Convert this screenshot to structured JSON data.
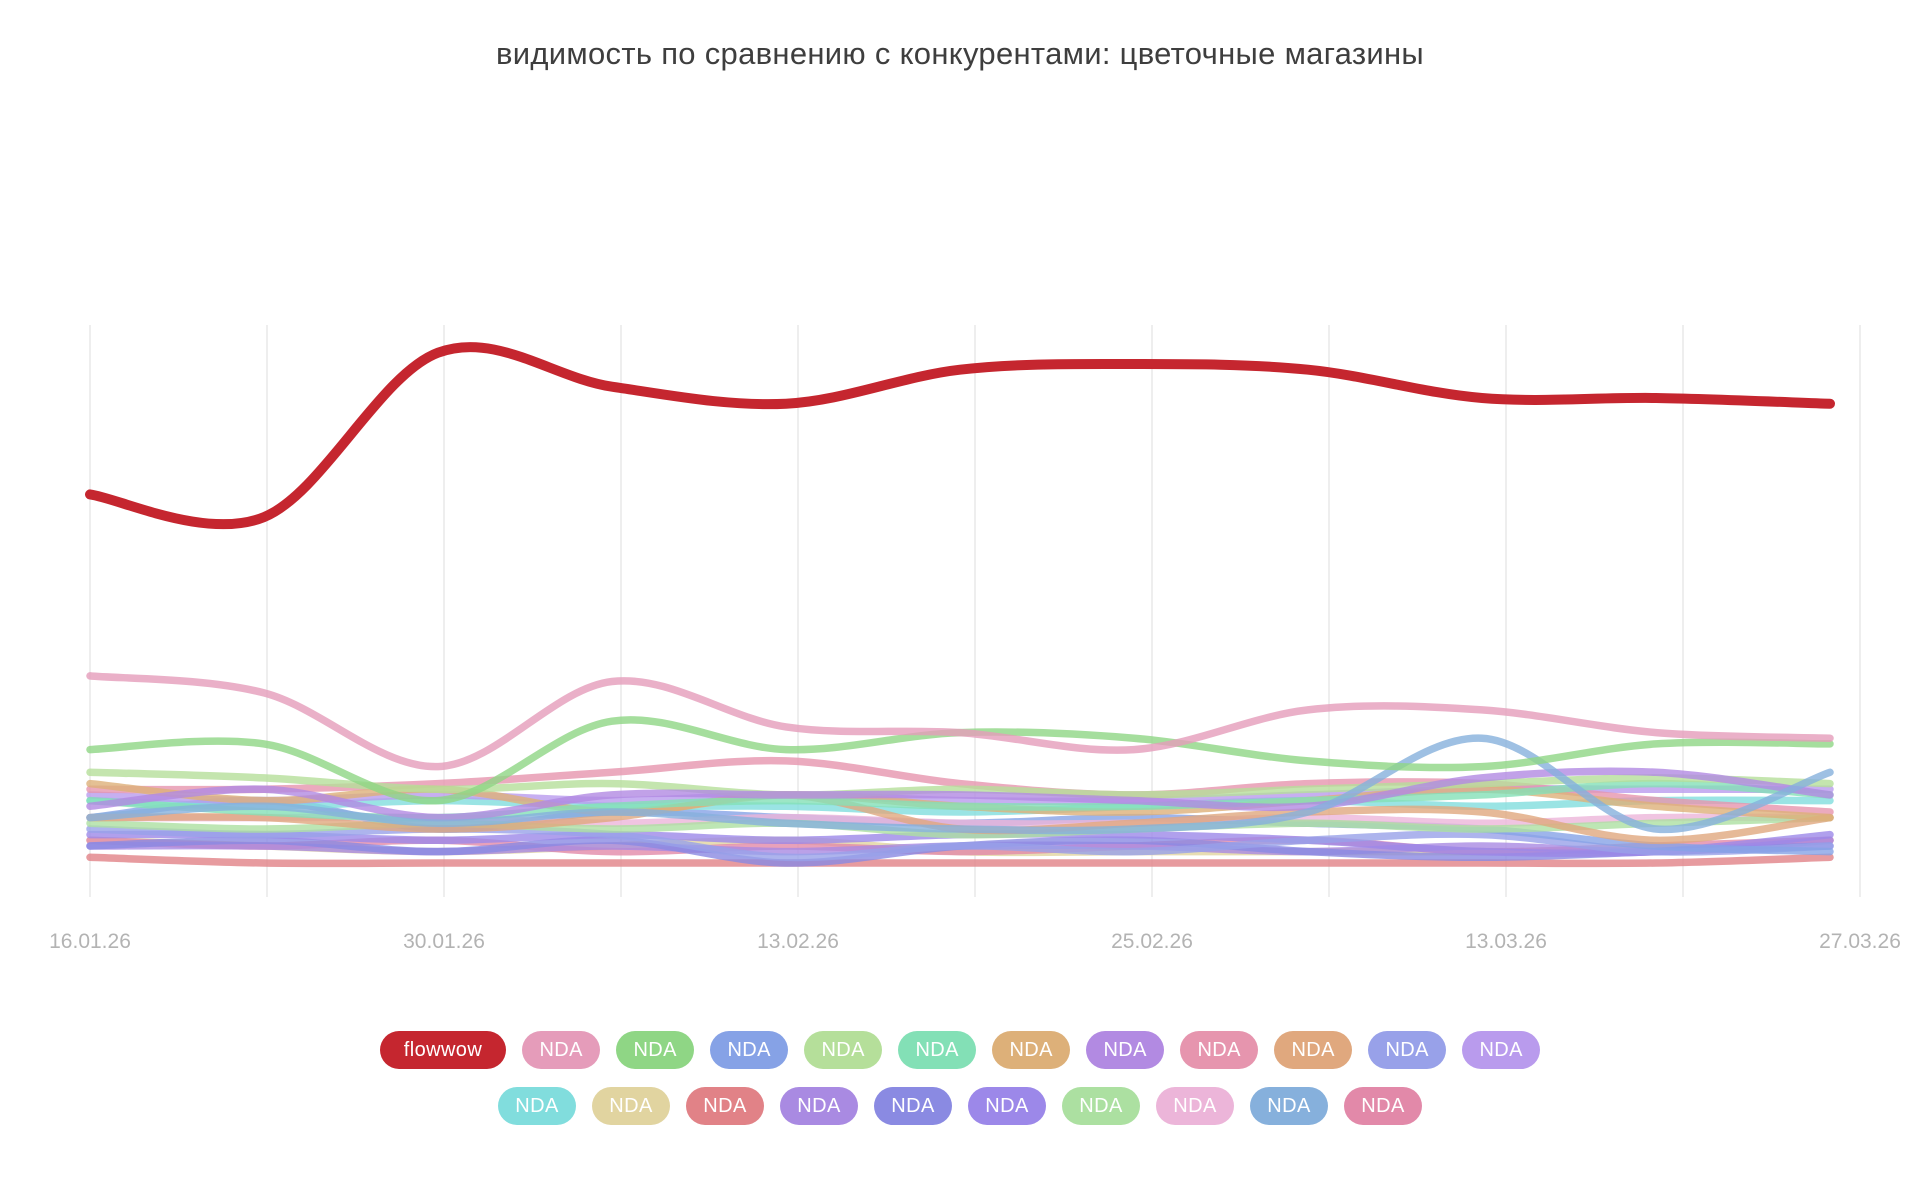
{
  "chart_data": {
    "type": "line",
    "title": "видимость по сравнению с конкурентами: цветочные магазины",
    "x_labels": [
      "16.01.26",
      "30.01.26",
      "13.02.26",
      "25.02.26",
      "13.03.26",
      "27.03.26"
    ],
    "n_points": 11,
    "x_points_per_label": 2,
    "ylim": [
      0,
      100
    ],
    "y_axis": "hidden",
    "grid": "vertical-only",
    "grid_color": "#eeeeee",
    "axis_label_color": "#b3b3b3",
    "title_color": "#3e3e3e",
    "legend_position": "bottom",
    "series": [
      {
        "name": "flowwow",
        "label": "flowwow",
        "color": "#c5262f",
        "z": 22,
        "width": 10,
        "values": [
          71,
          67,
          96,
          90,
          87,
          93,
          94,
          93,
          88,
          88,
          87
        ]
      },
      {
        "name": "nda-01",
        "label": "NDA",
        "color": "#e59cba",
        "z": 21,
        "width": 7.5,
        "values": [
          39,
          36,
          23,
          38,
          30,
          29,
          26,
          33,
          33,
          29,
          28
        ]
      },
      {
        "name": "nda-02",
        "label": "NDA",
        "color": "#8fd685",
        "z": 20,
        "width": 7.5,
        "values": [
          26,
          27,
          17,
          31,
          26,
          29,
          28,
          24,
          23,
          27,
          27
        ]
      },
      {
        "name": "nda-03",
        "label": "NDA",
        "color": "#86a2e6",
        "z": 8,
        "width": 7.5,
        "values": [
          14,
          17,
          12,
          15,
          14,
          13,
          14,
          13,
          12,
          9,
          8
        ]
      },
      {
        "name": "nda-04",
        "label": "NDA",
        "color": "#b5df9a",
        "z": 17,
        "width": 7.5,
        "values": [
          22,
          21,
          19,
          20,
          18,
          19,
          18,
          19,
          20,
          21,
          20
        ]
      },
      {
        "name": "nda-05",
        "label": "NDA",
        "color": "#83e0b6",
        "z": 16,
        "width": 7.5,
        "values": [
          17,
          15,
          14,
          16,
          17,
          16,
          16,
          17,
          18,
          20,
          18
        ]
      },
      {
        "name": "nda-06",
        "label": "NDA",
        "color": "#ddb079",
        "z": 15,
        "width": 7.5,
        "values": [
          20,
          17,
          19,
          15,
          18,
          16,
          15,
          17,
          19,
          16,
          14
        ]
      },
      {
        "name": "nda-07",
        "label": "NDA",
        "color": "#b28ae2",
        "z": 18,
        "width": 7.5,
        "values": [
          16,
          19,
          14,
          18,
          18,
          18,
          17,
          16,
          21,
          22,
          18
        ]
      },
      {
        "name": "nda-08",
        "label": "NDA",
        "color": "#e695ae",
        "z": 14,
        "width": 7.5,
        "values": [
          19,
          19,
          20,
          22,
          24,
          20,
          18,
          20,
          20,
          17,
          15
        ]
      },
      {
        "name": "nda-09",
        "label": "NDA",
        "color": "#e0a87e",
        "z": 12,
        "width": 7.5,
        "values": [
          14,
          14,
          12,
          14,
          18,
          12,
          13,
          15,
          15,
          10,
          14
        ]
      },
      {
        "name": "nda-10",
        "label": "NDA",
        "color": "#98a1e9",
        "z": 7,
        "width": 7.5,
        "values": [
          12,
          11,
          12,
          11,
          7,
          9,
          8,
          10,
          11,
          8,
          9
        ]
      },
      {
        "name": "nda-11",
        "label": "NDA",
        "color": "#b99bed",
        "z": 13,
        "width": 7.5,
        "values": [
          18,
          17,
          18,
          17,
          18,
          17,
          17,
          18,
          19,
          19,
          19
        ]
      },
      {
        "name": "nda-12",
        "label": "NDA",
        "color": "#81dddd",
        "z": 11,
        "width": 7.5,
        "values": [
          17,
          16,
          17,
          16,
          16,
          15,
          16,
          17,
          16,
          17,
          17
        ]
      },
      {
        "name": "nda-13",
        "label": "NDA",
        "color": "#e1d4a0",
        "z": 2,
        "width": 7.5,
        "values": [
          10,
          9,
          8,
          9,
          10,
          8,
          8,
          8,
          8,
          8,
          10
        ]
      },
      {
        "name": "nda-14",
        "label": "NDA",
        "color": "#e18287",
        "z": 1,
        "width": 7.5,
        "values": [
          7,
          6,
          6,
          6,
          6,
          6,
          6,
          6,
          6,
          6,
          7
        ]
      },
      {
        "name": "nda-15",
        "label": "NDA",
        "color": "#a98ae2",
        "z": 4,
        "width": 7.5,
        "values": [
          9,
          9,
          8,
          9,
          8,
          9,
          9,
          8,
          9,
          8,
          10
        ]
      },
      {
        "name": "nda-16",
        "label": "NDA",
        "color": "#8a8ae2",
        "z": 5,
        "width": 7.5,
        "values": [
          9,
          10,
          8,
          10,
          6,
          9,
          10,
          8,
          7,
          8,
          9
        ]
      },
      {
        "name": "nda-17",
        "label": "NDA",
        "color": "#9c88e9",
        "z": 6,
        "width": 7.5,
        "values": [
          11,
          11,
          10,
          11,
          10,
          11,
          11,
          10,
          8,
          8,
          11
        ]
      },
      {
        "name": "nda-18",
        "label": "NDA",
        "color": "#ace0a1",
        "z": 10,
        "width": 7.5,
        "values": [
          13,
          12,
          13,
          12,
          13,
          11,
          12,
          13,
          12,
          13,
          14
        ]
      },
      {
        "name": "nda-19",
        "label": "NDA",
        "color": "#ecb5d9",
        "z": 9,
        "width": 7.5,
        "values": [
          14,
          14,
          14,
          13,
          14,
          13,
          13,
          14,
          13,
          14,
          14
        ]
      },
      {
        "name": "nda-20",
        "label": "NDA",
        "color": "#86b0dc",
        "z": 19,
        "width": 7.5,
        "values": [
          14,
          16,
          13,
          15,
          13,
          12,
          12,
          15,
          28,
          12,
          22
        ]
      },
      {
        "name": "nda-21",
        "label": "NDA",
        "color": "#e289a9",
        "z": 3,
        "width": 7.5,
        "values": [
          10,
          9,
          10,
          8,
          9,
          8,
          9,
          10,
          8,
          9,
          10
        ]
      }
    ]
  },
  "legend": {
    "rows": [
      [
        "flowwow",
        "nda-01",
        "nda-02",
        "nda-03",
        "nda-04",
        "nda-05",
        "nda-06",
        "nda-07",
        "nda-08",
        "nda-09",
        "nda-10",
        "nda-11"
      ],
      [
        "nda-12",
        "nda-13",
        "nda-14",
        "nda-15",
        "nda-16",
        "nda-17",
        "nda-18",
        "nda-19",
        "nda-20",
        "nda-21"
      ]
    ]
  }
}
